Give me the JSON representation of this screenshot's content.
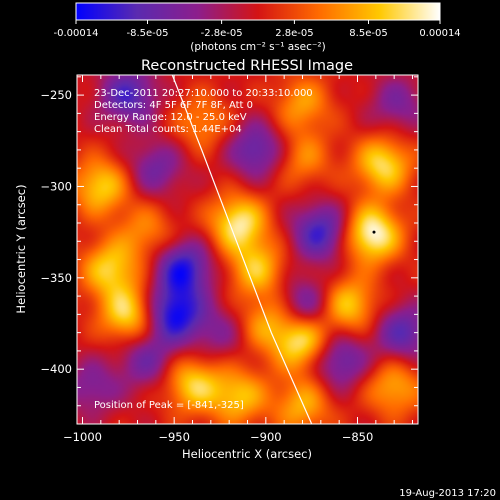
{
  "colorbar": {
    "tick_labels": [
      "-0.00014",
      "-8.5e-05",
      "-2.8e-05",
      "2.8e-05",
      "8.5e-05",
      "0.00014"
    ],
    "tick_values": [
      -0.00014,
      -8.5e-05,
      -2.8e-05,
      2.8e-05,
      8.5e-05,
      0.00014
    ],
    "range": [
      -0.00014,
      0.00014
    ],
    "unit_label": "(photons cm⁻² s⁻¹ asec⁻²)",
    "colors": [
      "#0000ff",
      "#5a2ab0",
      "#8c1e8c",
      "#d41414",
      "#ff6a00",
      "#ffc800",
      "#ffffff"
    ]
  },
  "chart_data": {
    "type": "heatmap",
    "title": "Reconstructed RHESSI Image",
    "xlabel": "Heliocentric X (arcsec)",
    "ylabel": "Heliocentric Y (arcsec)",
    "xlim": [
      -1003,
      -817
    ],
    "ylim": [
      -430,
      -239
    ],
    "x_ticks": [
      -1000,
      -950,
      -900,
      -850
    ],
    "x_tick_labels": [
      "−1000",
      "−950",
      "−900",
      "−850"
    ],
    "y_ticks": [
      -250,
      -300,
      -350,
      -400
    ],
    "y_tick_labels": [
      "−250",
      "−300",
      "−350",
      "−400"
    ],
    "annotations": [
      "23-Dec-2011 20:27:10.000 to 20:33:10.000",
      "Detectors: 4F 5F 6F 7F 8F, Att 0",
      "Energy Range: 12.0 - 25.0 keV",
      "Clean    Total counts: 1.44E+04"
    ],
    "peak_label": "Position of Peak = [-841,-325]",
    "peak": [
      -841,
      -325
    ],
    "limb_curve": [
      [
        -951,
        -239
      ],
      [
        -935,
        -280
      ],
      [
        -916,
        -330
      ],
      [
        -897,
        -380
      ],
      [
        -875,
        -430
      ]
    ],
    "blobs": [
      {
        "x": -990,
        "y": -300,
        "v": 0.0001
      },
      {
        "x": -985,
        "y": -345,
        "v": 0.0001
      },
      {
        "x": -975,
        "y": -370,
        "v": 0.00011
      },
      {
        "x": -965,
        "y": -325,
        "v": 6e-05
      },
      {
        "x": -935,
        "y": -265,
        "v": 6e-05
      },
      {
        "x": -915,
        "y": -320,
        "v": 0.00012
      },
      {
        "x": -905,
        "y": -345,
        "v": 9e-05
      },
      {
        "x": -880,
        "y": -255,
        "v": 7e-05
      },
      {
        "x": -880,
        "y": -285,
        "v": 6e-05
      },
      {
        "x": -842,
        "y": -326,
        "v": 0.00014
      },
      {
        "x": -836,
        "y": -288,
        "v": 0.00011
      },
      {
        "x": -855,
        "y": -365,
        "v": 0.0001
      },
      {
        "x": -880,
        "y": -385,
        "v": 0.00012
      },
      {
        "x": -900,
        "y": -375,
        "v": 7e-05
      },
      {
        "x": -940,
        "y": -408,
        "v": 0.0001
      },
      {
        "x": -915,
        "y": -415,
        "v": 9e-05
      },
      {
        "x": -880,
        "y": -420,
        "v": 8e-05
      },
      {
        "x": -830,
        "y": -410,
        "v": 8e-05
      },
      {
        "x": -945,
        "y": -345,
        "v": -0.00012
      },
      {
        "x": -950,
        "y": -370,
        "v": -0.00013
      },
      {
        "x": -975,
        "y": -250,
        "v": -0.0001
      },
      {
        "x": -905,
        "y": -280,
        "v": -9e-05
      },
      {
        "x": -870,
        "y": -325,
        "v": -0.00011
      },
      {
        "x": -878,
        "y": -365,
        "v": -8e-05
      },
      {
        "x": -825,
        "y": -380,
        "v": -9e-05
      },
      {
        "x": -995,
        "y": -410,
        "v": -6e-05
      },
      {
        "x": -960,
        "y": -290,
        "v": -7e-05
      },
      {
        "x": -860,
        "y": -395,
        "v": -9e-05
      },
      {
        "x": -925,
        "y": -380,
        "v": -5e-05
      },
      {
        "x": -828,
        "y": -255,
        "v": -6e-05
      },
      {
        "x": -965,
        "y": -395,
        "v": -7e-05
      }
    ]
  },
  "footer": {
    "timestamp": "19-Aug-2013 17:20"
  }
}
